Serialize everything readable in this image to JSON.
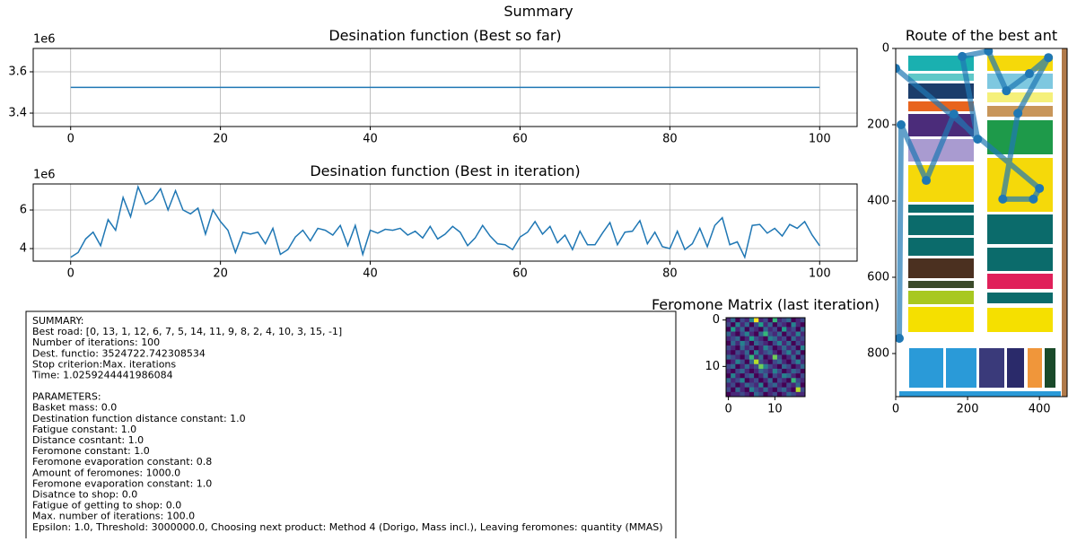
{
  "title": "Summary",
  "chart_data": [
    {
      "type": "line",
      "title": "Desination function (Best so far)",
      "y_offset_label": "1e6",
      "grid": true,
      "color": "#1f77b4",
      "xlim": [
        -5,
        105
      ],
      "xticks": [
        0,
        20,
        40,
        60,
        80,
        100
      ],
      "ylim": [
        3.335,
        3.713
      ],
      "yticks": [
        3.4,
        3.6
      ],
      "x": [
        0,
        1,
        2,
        3,
        4,
        5,
        6,
        7,
        8,
        9,
        10,
        11,
        12,
        13,
        14,
        15,
        16,
        17,
        18,
        19,
        20,
        21,
        22,
        23,
        24,
        25,
        26,
        27,
        28,
        29,
        30,
        31,
        32,
        33,
        34,
        35,
        36,
        37,
        38,
        39,
        40,
        41,
        42,
        43,
        44,
        45,
        46,
        47,
        48,
        49,
        50,
        51,
        52,
        53,
        54,
        55,
        56,
        57,
        58,
        59,
        60,
        61,
        62,
        63,
        64,
        65,
        66,
        67,
        68,
        69,
        70,
        71,
        72,
        73,
        74,
        75,
        76,
        77,
        78,
        79,
        80,
        81,
        82,
        83,
        84,
        85,
        86,
        87,
        88,
        89,
        90,
        91,
        92,
        93,
        94,
        95,
        96,
        97,
        98,
        99,
        100
      ],
      "values": [
        3.5247,
        3.5247,
        3.5247,
        3.5247,
        3.5247,
        3.5247,
        3.5247,
        3.5247,
        3.5247,
        3.5247,
        3.5247,
        3.5247,
        3.5247,
        3.5247,
        3.5247,
        3.5247,
        3.5247,
        3.5247,
        3.5247,
        3.5247,
        3.5247,
        3.5247,
        3.5247,
        3.5247,
        3.5247,
        3.5247,
        3.5247,
        3.5247,
        3.5247,
        3.5247,
        3.5247,
        3.5247,
        3.5247,
        3.5247,
        3.5247,
        3.5247,
        3.5247,
        3.5247,
        3.5247,
        3.5247,
        3.5247,
        3.5247,
        3.5247,
        3.5247,
        3.5247,
        3.5247,
        3.5247,
        3.5247,
        3.5247,
        3.5247,
        3.5247,
        3.5247,
        3.5247,
        3.5247,
        3.5247,
        3.5247,
        3.5247,
        3.5247,
        3.5247,
        3.5247,
        3.5247,
        3.5247,
        3.5247,
        3.5247,
        3.5247,
        3.5247,
        3.5247,
        3.5247,
        3.5247,
        3.5247,
        3.5247,
        3.5247,
        3.5247,
        3.5247,
        3.5247,
        3.5247,
        3.5247,
        3.5247,
        3.5247,
        3.5247,
        3.5247,
        3.5247,
        3.5247,
        3.5247,
        3.5247,
        3.5247,
        3.5247,
        3.5247,
        3.5247,
        3.5247,
        3.5247,
        3.5247,
        3.5247,
        3.5247,
        3.5247,
        3.5247,
        3.5247,
        3.5247,
        3.5247,
        3.5247,
        3.5247
      ]
    },
    {
      "type": "line",
      "title": "Desination function (Best in iteration)",
      "y_offset_label": "1e6",
      "grid": true,
      "color": "#1f77b4",
      "xlim": [
        -5,
        105
      ],
      "xticks": [
        0,
        20,
        40,
        60,
        80,
        100
      ],
      "ylim": [
        3.35,
        7.35
      ],
      "yticks": [
        4,
        6
      ],
      "x": [
        0,
        1,
        2,
        3,
        4,
        5,
        6,
        7,
        8,
        9,
        10,
        11,
        12,
        13,
        14,
        15,
        16,
        17,
        18,
        19,
        20,
        21,
        22,
        23,
        24,
        25,
        26,
        27,
        28,
        29,
        30,
        31,
        32,
        33,
        34,
        35,
        36,
        37,
        38,
        39,
        40,
        41,
        42,
        43,
        44,
        45,
        46,
        47,
        48,
        49,
        50,
        51,
        52,
        53,
        54,
        55,
        56,
        57,
        58,
        59,
        60,
        61,
        62,
        63,
        64,
        65,
        66,
        67,
        68,
        69,
        70,
        71,
        72,
        73,
        74,
        75,
        76,
        77,
        78,
        79,
        80,
        81,
        82,
        83,
        84,
        85,
        86,
        87,
        88,
        89,
        90,
        91,
        92,
        93,
        94,
        95,
        96,
        97,
        98,
        99,
        100
      ],
      "values": [
        3.55,
        3.8,
        4.5,
        4.85,
        4.15,
        5.5,
        4.95,
        6.65,
        5.65,
        7.2,
        6.3,
        6.55,
        7.1,
        6.0,
        7.0,
        6.0,
        5.8,
        6.1,
        4.75,
        6.0,
        5.4,
        4.95,
        3.8,
        4.85,
        4.75,
        4.85,
        4.25,
        5.05,
        3.7,
        3.95,
        4.6,
        4.95,
        4.4,
        5.05,
        4.95,
        4.7,
        5.2,
        4.15,
        5.2,
        3.7,
        4.95,
        4.8,
        5.0,
        4.95,
        5.05,
        4.7,
        4.9,
        4.55,
        5.15,
        4.5,
        4.75,
        5.15,
        4.85,
        4.15,
        4.55,
        5.2,
        4.65,
        4.25,
        4.2,
        3.95,
        4.6,
        4.85,
        5.4,
        4.75,
        5.15,
        4.3,
        4.7,
        3.95,
        4.9,
        4.2,
        4.2,
        4.8,
        5.35,
        4.2,
        4.85,
        4.9,
        5.45,
        4.25,
        4.85,
        4.1,
        4.0,
        4.9,
        3.95,
        4.25,
        5.05,
        4.1,
        5.2,
        5.6,
        4.2,
        4.35,
        3.55,
        5.2,
        5.25,
        4.8,
        5.05,
        4.65,
        5.25,
        5.05,
        5.4,
        4.7,
        4.15
      ]
    },
    {
      "type": "heatmap",
      "title": "Feromone Matrix (last iteration)",
      "colormap": "viridis",
      "xlim": [
        -0.5,
        16.5
      ],
      "xticks": [
        0,
        10
      ],
      "ylim": [
        16.5,
        -0.5
      ],
      "yticks": [
        0,
        10
      ],
      "values": [
        [
          1,
          3,
          0,
          2,
          1,
          4,
          9,
          1,
          2,
          0,
          6,
          1,
          2,
          3,
          0,
          1,
          2
        ],
        [
          2,
          0,
          4,
          1,
          3,
          0,
          2,
          5,
          1,
          3,
          0,
          2,
          1,
          0,
          4,
          1,
          0
        ],
        [
          0,
          5,
          1,
          3,
          0,
          2,
          1,
          0,
          3,
          1,
          2,
          0,
          5,
          1,
          2,
          0,
          3
        ],
        [
          3,
          1,
          0,
          2,
          4,
          1,
          0,
          3,
          6,
          2,
          1,
          3,
          0,
          2,
          1,
          4,
          1
        ],
        [
          1,
          2,
          3,
          0,
          1,
          5,
          2,
          1,
          0,
          4,
          3,
          1,
          2,
          0,
          3,
          1,
          2
        ],
        [
          0,
          3,
          1,
          4,
          2,
          0,
          3,
          2,
          1,
          0,
          2,
          4,
          1,
          3,
          0,
          2,
          1
        ],
        [
          2,
          1,
          0,
          3,
          1,
          2,
          0,
          1,
          4,
          2,
          0,
          1,
          3,
          1,
          2,
          0,
          4
        ],
        [
          1,
          0,
          2,
          1,
          3,
          0,
          4,
          1,
          2,
          3,
          1,
          0,
          2,
          4,
          1,
          3,
          0
        ],
        [
          3,
          2,
          1,
          0,
          2,
          6,
          1,
          3,
          0,
          1,
          7,
          2,
          0,
          1,
          3,
          0,
          2
        ],
        [
          0,
          1,
          4,
          2,
          0,
          3,
          8,
          2,
          1,
          0,
          2,
          3,
          1,
          0,
          2,
          4,
          1
        ],
        [
          2,
          3,
          0,
          1,
          3,
          1,
          2,
          7,
          4,
          2,
          1,
          0,
          3,
          2,
          0,
          1,
          3
        ],
        [
          1,
          0,
          2,
          3,
          1,
          0,
          1,
          3,
          2,
          1,
          4,
          2,
          0,
          1,
          3,
          2,
          0
        ],
        [
          0,
          4,
          1,
          0,
          2,
          3,
          0,
          1,
          3,
          0,
          2,
          1,
          4,
          3,
          1,
          0,
          2
        ],
        [
          3,
          1,
          2,
          4,
          0,
          1,
          2,
          0,
          1,
          3,
          0,
          2,
          1,
          0,
          6,
          2,
          1
        ],
        [
          1,
          2,
          0,
          1,
          3,
          2,
          1,
          4,
          0,
          2,
          3,
          1,
          0,
          2,
          1,
          3,
          0
        ],
        [
          2,
          0,
          3,
          1,
          0,
          4,
          2,
          1,
          3,
          1,
          0,
          2,
          3,
          1,
          0,
          8,
          2
        ],
        [
          0,
          1,
          1,
          2,
          1,
          0,
          3,
          2,
          0,
          1,
          2,
          0,
          1,
          3,
          2,
          1,
          1
        ]
      ]
    },
    {
      "type": "route",
      "title": "Route of the best ant",
      "color": "#1f77b4",
      "xlim": [
        0,
        477
      ],
      "xticks": [
        0,
        200,
        400
      ],
      "ylim": [
        913,
        0
      ],
      "yticks": [
        0,
        200,
        400,
        600,
        800
      ],
      "x": [
        10,
        15,
        85,
        162,
        228,
        185,
        258,
        308,
        372,
        425,
        340,
        298,
        383,
        400,
        0
      ],
      "y": [
        760,
        200,
        346,
        172,
        238,
        21,
        7,
        111,
        66,
        24,
        170,
        395,
        395,
        367,
        52
      ]
    }
  ],
  "summary_box": {
    "summary_lines": [
      "SUMMARY:",
      "Best road: [0, 13, 1, 12, 6, 7, 5, 14, 11, 9, 8, 2, 4, 10, 3, 15, -1]",
      "Number of iterations: 100",
      "Dest. functio: 3524722.742308534",
      "Stop criterion:Max. iterations",
      "Time: 1.0259244441986084"
    ],
    "parameter_lines": [
      "PARAMETERS:",
      "Basket mass: 0.0",
      "Destination function distance constant: 1.0",
      "Fatigue constant: 1.0",
      "Distance cosntant: 1.0",
      "Feromone constant: 1.0",
      "Feromone evaporation constant: 0.8",
      "Amount of feromones: 1000.0",
      "Feromone evaporation constant: 1.0",
      "Disatnce to shop: 0.0",
      "Fatigue of getting to shop: 0.0",
      "Max. number of iterations: 100.0",
      "Epsilon: 1.0, Threshold: 3000000.0, Choosing next product: Method 4 (Dorigo, Mass incl.), Leaving feromones: quantity (MMAS)"
    ]
  }
}
